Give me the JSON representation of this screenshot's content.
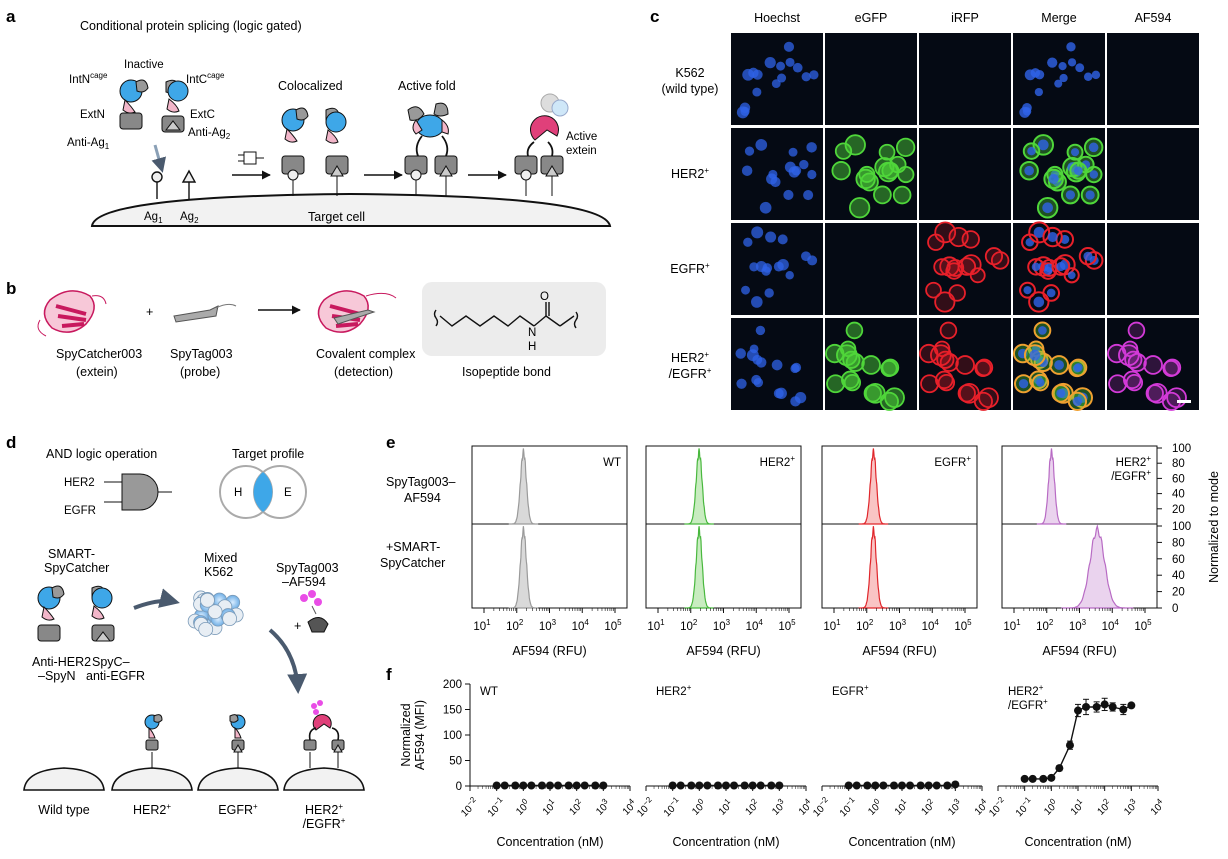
{
  "panel_a": {
    "label": "a",
    "title": "Conditional protein splicing (logic gated)",
    "inactive": "Inactive",
    "intn": "IntN",
    "intn_sup": "cage",
    "intc": "IntC",
    "intc_sup": "cage",
    "extn": "ExtN",
    "extc": "ExtC",
    "antiag1": "Anti-Ag",
    "antiag1_sub": "1",
    "antiag2": "Anti-Ag",
    "antiag2_sub": "2",
    "colocalized": "Colocalized",
    "active_fold": "Active fold",
    "active_extein_1": "Active",
    "active_extein_2": "extein",
    "ag1": "Ag",
    "ag1_sub": "1",
    "ag2": "Ag",
    "ag2_sub": "2",
    "target_cell": "Target cell"
  },
  "panel_b": {
    "label": "b",
    "spycatcher": "SpyCatcher003",
    "spycatcher_sub": "(extein)",
    "plus": "+",
    "spytag": "SpyTag003",
    "spytag_sub": "(probe)",
    "complex": "Covalent complex",
    "complex_sub": "(detection)",
    "isopeptide": "Isopeptide bond",
    "atom_o": "O",
    "atom_n": "N",
    "atom_h": "H"
  },
  "panel_c": {
    "label": "c",
    "columns": [
      "Hoechst",
      "eGFP",
      "iRFP",
      "Merge",
      "AF594"
    ],
    "rows": [
      {
        "l1": "K562",
        "l1sup": "",
        "l2": "(wild type)",
        "l2sup": ""
      },
      {
        "l1": "HER2",
        "l1sup": "+",
        "l2": "",
        "l2sup": ""
      },
      {
        "l1": "EGFR",
        "l1sup": "+",
        "l2": "",
        "l2sup": ""
      },
      {
        "l1": "HER2",
        "l1sup": "+",
        "l2": "/EGFR",
        "l2sup": "+"
      }
    ],
    "colors": {
      "hoechst": "#2f63e8",
      "egfp": "#4fd63a",
      "irfp": "#e8202a",
      "af594": "#d33ad8"
    }
  },
  "panel_d": {
    "label": "d",
    "and_logic": "AND logic operation",
    "target_profile": "Target profile",
    "her2": "HER2",
    "egfr": "EGFR",
    "venn_h": "H",
    "venn_e": "E",
    "smart_1": "SMART-",
    "smart_2": "SpyCatcher",
    "mixed_1": "Mixed",
    "mixed_2": "K562",
    "tag_1": "SpyTag003",
    "tag_2": "–AF594",
    "plus": "+",
    "antiher2_1": "Anti-HER2",
    "antiher2_2": "–SpyN",
    "spyc_1": "SpyC–",
    "spyc_2": "anti-EGFR",
    "cells": [
      {
        "l1": "Wild type",
        "l1sup": "",
        "l2": "",
        "l2sup": ""
      },
      {
        "l1": "HER2",
        "l1sup": "+",
        "l2": "",
        "l2sup": ""
      },
      {
        "l1": "EGFR",
        "l1sup": "+",
        "l2": "",
        "l2sup": ""
      },
      {
        "l1": "HER2",
        "l1sup": "+",
        "l2": "/EGFR",
        "l2sup": "+"
      }
    ]
  },
  "panel_e": {
    "label": "e",
    "row_labels": [
      [
        "SpyTag003–",
        "AF594"
      ],
      [
        "+SMART-",
        "SpyCatcher"
      ]
    ],
    "titles": [
      {
        "l1": "WT",
        "l1sup": "",
        "l2": "",
        "l2sup": ""
      },
      {
        "l1": "HER2",
        "l1sup": "+",
        "l2": "",
        "l2sup": ""
      },
      {
        "l1": "EGFR",
        "l1sup": "+",
        "l2": "",
        "l2sup": ""
      },
      {
        "l1": "HER2",
        "l1sup": "+",
        "l2": "/EGFR",
        "l2sup": "+"
      }
    ],
    "xlabel": "AF594 (RFU)",
    "ylabel": "Normalized to mode",
    "x_ticks": [
      "10",
      "10",
      "10",
      "10",
      "10"
    ],
    "x_tick_exps": [
      "1",
      "2",
      "3",
      "4",
      "5"
    ],
    "y_ticks": [
      "0",
      "20",
      "40",
      "60",
      "80",
      "100"
    ],
    "colors": [
      "#9a9a9a",
      "#49b83e",
      "#e0262b",
      "#b86bc4"
    ],
    "fills": [
      "#d9d9d9",
      "#c8ecc0",
      "#f9c4c4",
      "#ead3ee"
    ],
    "peaks_log10": [
      [
        2.2,
        2.25,
        2.2,
        2.15
      ],
      [
        2.2,
        2.25,
        2.2,
        3.55
      ]
    ]
  },
  "panel_f": {
    "label": "f",
    "titles": [
      {
        "l1": "WT",
        "l1sup": "",
        "l2": "",
        "l2sup": ""
      },
      {
        "l1": "HER2",
        "l1sup": "+",
        "l2": "",
        "l2sup": ""
      },
      {
        "l1": "EGFR",
        "l1sup": "+",
        "l2": "",
        "l2sup": ""
      },
      {
        "l1": "HER2",
        "l1sup": "+",
        "l2": "/EGFR",
        "l2sup": "+"
      }
    ],
    "xlabel": "Concentration (nM)",
    "ylabel_1": "Normalized",
    "ylabel_2": "AF594 (MFI)",
    "y_ticks": [
      "0",
      "50",
      "100",
      "150",
      "200"
    ],
    "x_tick_exps": [
      "−2",
      "−1",
      "0",
      "1",
      "2",
      "3",
      "4"
    ]
  },
  "chart_data": [
    {
      "type": "area",
      "panel": "e",
      "xlabel": "AF594 (RFU)",
      "ylabel": "Normalized to mode",
      "x_scale": "log",
      "xlim": [
        10,
        100000
      ],
      "ylim": [
        0,
        100
      ],
      "series": [
        {
          "name": "WT",
          "row": "SpyTag003–AF594",
          "peak": 160
        },
        {
          "name": "HER2+",
          "row": "SpyTag003–AF594",
          "peak": 180
        },
        {
          "name": "EGFR+",
          "row": "SpyTag003–AF594",
          "peak": 160
        },
        {
          "name": "HER2+/EGFR+",
          "row": "SpyTag003–AF594",
          "peak": 140
        },
        {
          "name": "WT",
          "row": "+SMART-SpyCatcher",
          "peak": 160
        },
        {
          "name": "HER2+",
          "row": "+SMART-SpyCatcher",
          "peak": 180
        },
        {
          "name": "EGFR+",
          "row": "+SMART-SpyCatcher",
          "peak": 160
        },
        {
          "name": "HER2+/EGFR+",
          "row": "+SMART-SpyCatcher",
          "peak": 3500
        }
      ]
    },
    {
      "type": "scatter",
      "panel": "f",
      "xlabel": "Concentration (nM)",
      "ylabel": "Normalized AF594 (MFI)",
      "x_scale": "log",
      "xlim": [
        0.01,
        10000
      ],
      "ylim": [
        0,
        200
      ],
      "x": [
        0.1,
        0.2,
        0.5,
        1,
        2,
        5,
        10,
        20,
        50,
        100,
        200,
        500,
        1000
      ],
      "series": [
        {
          "name": "WT",
          "values": [
            1,
            1,
            1,
            1,
            1,
            1,
            1,
            1,
            1,
            1,
            1,
            1,
            1
          ]
        },
        {
          "name": "HER2+",
          "values": [
            1,
            1,
            1,
            1,
            1,
            1,
            1,
            1,
            1,
            1,
            1,
            1,
            1
          ]
        },
        {
          "name": "EGFR+",
          "values": [
            1,
            1,
            1,
            1,
            1,
            1,
            1,
            1,
            1,
            1,
            1,
            1,
            3
          ]
        },
        {
          "name": "HER2+/EGFR+",
          "values": [
            14,
            14,
            14,
            16,
            35,
            80,
            148,
            155,
            155,
            160,
            155,
            150,
            158
          ],
          "errors": [
            0,
            0,
            0,
            0,
            5,
            8,
            12,
            15,
            10,
            12,
            8,
            10,
            4
          ]
        }
      ]
    }
  ]
}
